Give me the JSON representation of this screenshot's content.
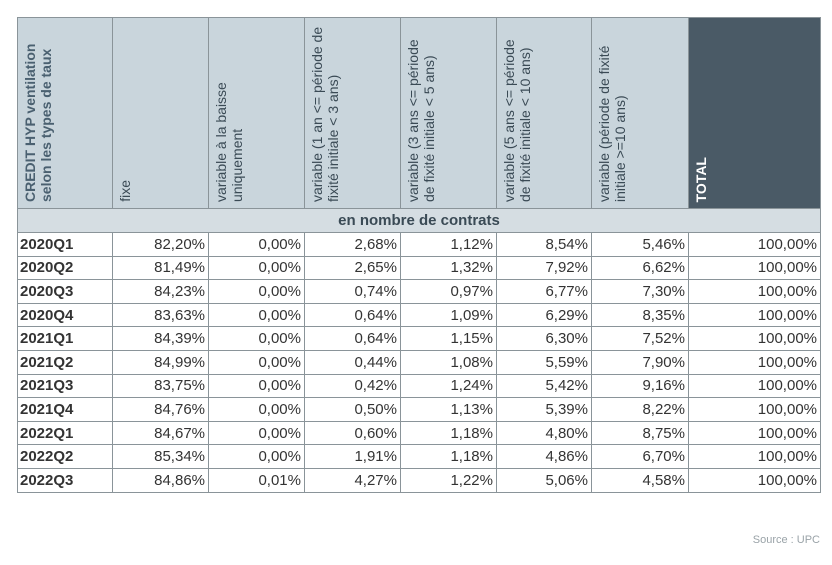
{
  "table": {
    "headers": [
      "CREDIT HYP ventilation selon les types de taux",
      "fixe",
      "variable à la baisse uniquement",
      "variable (1 an <= période de fixité initiale < 3 ans)",
      "variable (3 ans <= période de fixité initiale < 5 ans)",
      "variable (5 ans <= période de fixité initiale < 10 ans)",
      "variable (période de fixité initiale >=10 ans)",
      "TOTAL"
    ],
    "subheader": "en nombre de contrats",
    "rows": [
      [
        "2020Q1",
        "82,20%",
        "0,00%",
        "2,68%",
        "1,12%",
        "8,54%",
        "5,46%",
        "100,00%"
      ],
      [
        "2020Q2",
        "81,49%",
        "0,00%",
        "2,65%",
        "1,32%",
        "7,92%",
        "6,62%",
        "100,00%"
      ],
      [
        "2020Q3",
        "84,23%",
        "0,00%",
        "0,74%",
        "0,97%",
        "6,77%",
        "7,30%",
        "100,00%"
      ],
      [
        "2020Q4",
        "83,63%",
        "0,00%",
        "0,64%",
        "1,09%",
        "6,29%",
        "8,35%",
        "100,00%"
      ],
      [
        "2021Q1",
        "84,39%",
        "0,00%",
        "0,64%",
        "1,15%",
        "6,30%",
        "7,52%",
        "100,00%"
      ],
      [
        "2021Q2",
        "84,99%",
        "0,00%",
        "0,44%",
        "1,08%",
        "5,59%",
        "7,90%",
        "100,00%"
      ],
      [
        "2021Q3",
        "83,75%",
        "0,00%",
        "0,42%",
        "1,24%",
        "5,42%",
        "9,16%",
        "100,00%"
      ],
      [
        "2021Q4",
        "84,76%",
        "0,00%",
        "0,50%",
        "1,13%",
        "5,39%",
        "8,22%",
        "100,00%"
      ],
      [
        "2022Q1",
        "84,67%",
        "0,00%",
        "0,60%",
        "1,18%",
        "4,80%",
        "8,75%",
        "100,00%"
      ],
      [
        "2022Q2",
        "85,34%",
        "0,00%",
        "1,91%",
        "1,18%",
        "4,86%",
        "6,70%",
        "100,00%"
      ],
      [
        "2022Q3",
        "84,86%",
        "0,01%",
        "4,27%",
        "1,22%",
        "5,06%",
        "4,58%",
        "100,00%"
      ]
    ]
  },
  "source": "Source : UPC"
}
